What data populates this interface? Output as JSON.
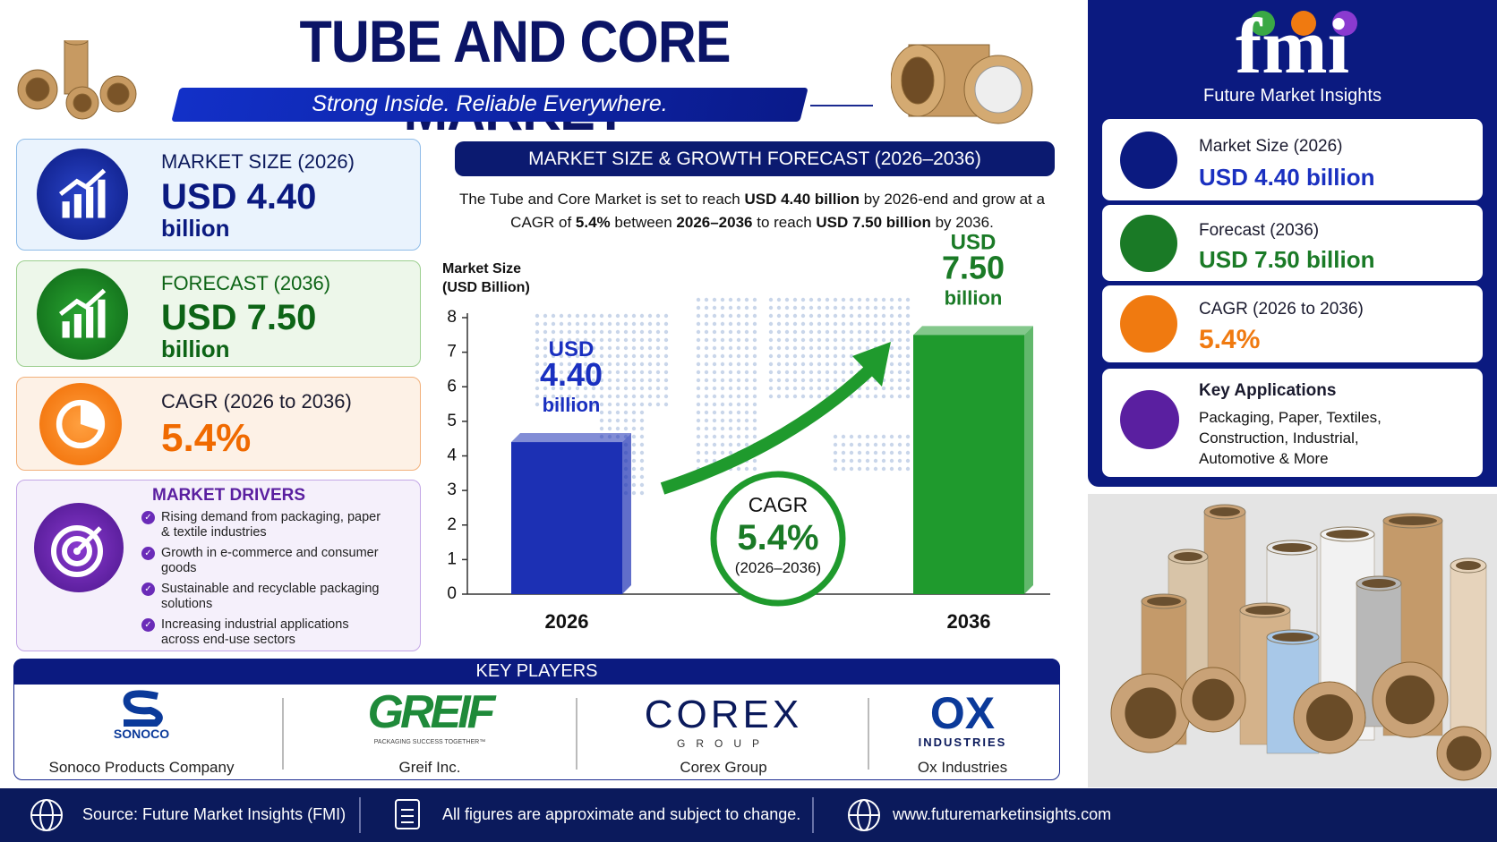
{
  "header": {
    "title": "TUBE AND CORE MARKET",
    "tagline": "Strong Inside. Reliable Everywhere."
  },
  "cards": [
    {
      "label": "MARKET SIZE (2026)",
      "value": "USD 4.40 billion"
    },
    {
      "label": "FORECAST (2036)",
      "value": "USD 7.50 billion"
    },
    {
      "label": "CAGR (2026 to 2036)",
      "value": "5.4%"
    }
  ],
  "drivers": {
    "title": "MARKET DRIVERS",
    "items": [
      "Rising demand from packaging, paper & textile industries",
      "Growth in e-commerce and consumer goods",
      "Sustainable and recyclable packaging solutions",
      "Increasing industrial applications across end-use sectors"
    ]
  },
  "chart_data": {
    "type": "bar",
    "title": "MARKET SIZE & GROWTH FORECAST (2026–2036)",
    "subtitle": [
      "The Tube and Core Market is set to reach ",
      "USD 4.40 billion",
      " by 2026-end and grow at a CAGR of ",
      "5.4%",
      " between ",
      "2026–2036",
      " to reach ",
      "USD 7.50 billion",
      " by 2036."
    ],
    "ylabel": "Market Size (USD Billion)",
    "categories": [
      "2026",
      "2036"
    ],
    "values": [
      4.4,
      7.5
    ],
    "value_labels": [
      "USD 4.40 billion",
      "USD 7.50 billion"
    ],
    "colors": [
      "#1c30b4",
      "#1f9a2d"
    ],
    "ylim": [
      0,
      8
    ],
    "yticks": [
      0,
      1,
      2,
      3,
      4,
      5,
      6,
      7,
      8
    ],
    "annotation": {
      "label": "CAGR",
      "value": "5.4%",
      "period": "(2026–2036)"
    }
  },
  "key_players": {
    "title": "KEY PLAYERS",
    "players": [
      {
        "logo": "SONOCO",
        "name": "Sonoco Products Company"
      },
      {
        "logo": "GREIF",
        "tagline": "PACKAGING SUCCESS TOGETHER™",
        "name": "Greif Inc."
      },
      {
        "logo": "COREX",
        "sub": "GROUP",
        "name": "Corex Group"
      },
      {
        "logo": "OX",
        "sub": "INDUSTRIES",
        "name": "Ox Industries"
      }
    ]
  },
  "brand": {
    "logo": "fmi",
    "name": "Future Market Insights"
  },
  "highlights": [
    {
      "label": "Market Size (2026)",
      "value": "USD 4.40 billion"
    },
    {
      "label": "Forecast (2036)",
      "value": "USD 7.50 billion"
    },
    {
      "label": "CAGR (2026 to 2036)",
      "value": "5.4%"
    },
    {
      "label": "Key Applications",
      "value": "Packaging, Paper, Textiles, Construction, Industrial, Automotive & More"
    }
  ],
  "footer": [
    "Source: Future Market Insights (FMI)",
    "All figures are approximate and subject to change.",
    "www.futuremarketinsights.com"
  ]
}
